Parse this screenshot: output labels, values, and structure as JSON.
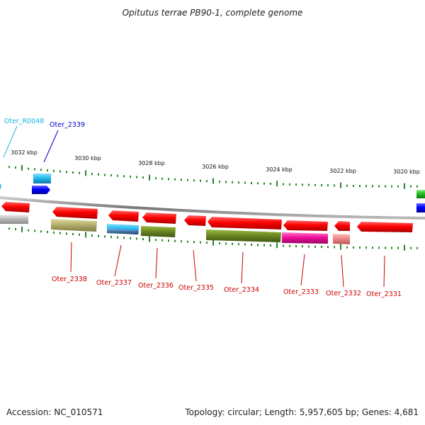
{
  "title": "Opitutus terrae PB90-1, complete genome",
  "footer": {
    "accession": "Accession: NC_010571",
    "summary": "Topology: circular; Length: 5,957,605 bp; Genes: 4,681"
  },
  "scale_labels": [
    "3032 kbp",
    "3030 kbp",
    "3028 kbp",
    "3026 kbp",
    "3024 kbp",
    "3022 kbp",
    "3020 kbp"
  ],
  "genes": [
    {
      "label": "Oter_R0048",
      "color": "#19b5e6"
    },
    {
      "label": "Oter_2339",
      "color": "#0000cc"
    },
    {
      "label": "Oter_2338",
      "color": "#cc0000"
    },
    {
      "label": "Oter_2337",
      "color": "#cc0000"
    },
    {
      "label": "Oter_2336",
      "color": "#cc0000"
    },
    {
      "label": "Oter_2335",
      "color": "#cc0000"
    },
    {
      "label": "Oter_2334",
      "color": "#cc0000"
    },
    {
      "label": "Oter_2333",
      "color": "#cc0000"
    },
    {
      "label": "Oter_2332",
      "color": "#cc0000"
    },
    {
      "label": "Oter_2331",
      "color": "#cc0000"
    }
  ],
  "colors": {
    "gene_red": "#ff0000",
    "gene_blue": "#0000ff",
    "gene_cyan": "#22bbee",
    "gene_green": "#22aa22",
    "cog_gray": "#bbbbbb",
    "cog_olive": "#b5b070",
    "cog_steelblue": "#4477aa",
    "cog_darkolive": "#6b8a22",
    "cog_magenta": "#ee1199",
    "cog_pink": "#ee8888",
    "backbone": "#888888",
    "tick": "#228822"
  }
}
